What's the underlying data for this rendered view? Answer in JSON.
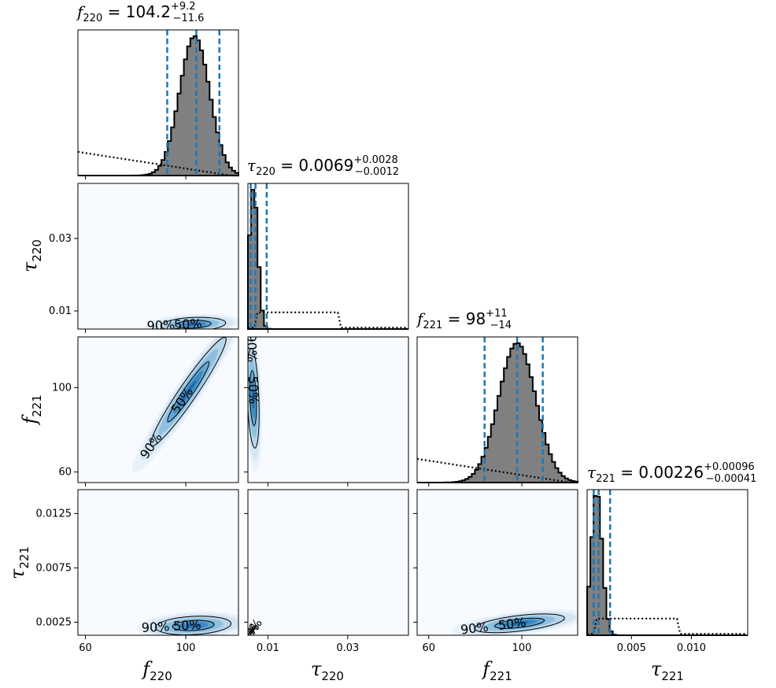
{
  "figure": {
    "type": "corner-plot",
    "parameters": [
      {
        "id": "f220",
        "symbol": "f",
        "subscript": "220",
        "label": "f220"
      },
      {
        "id": "tau220",
        "symbol": "τ",
        "subscript": "220",
        "label": "τ220"
      },
      {
        "id": "f221",
        "symbol": "f",
        "subscript": "221",
        "label": "f221"
      },
      {
        "id": "tau221",
        "symbol": "τ",
        "subscript": "221",
        "label": "τ221"
      }
    ],
    "titles": [
      {
        "param": "f220",
        "equals": " = ",
        "median": "104.2",
        "plus": "+9.2",
        "minus": "−11.6"
      },
      {
        "param": "tau220",
        "equals": " = ",
        "median": "0.0069",
        "plus": "+0.0028",
        "minus": "−0.0012"
      },
      {
        "param": "f221",
        "equals": " = ",
        "median": "98",
        "plus": "+11",
        "minus": "−14"
      },
      {
        "param": "tau221",
        "equals": " = ",
        "median": "0.00226",
        "plus": "+0.00096",
        "minus": "−0.00041"
      }
    ],
    "colors": {
      "histogram_fill": "#808080",
      "histogram_edge": "#000000",
      "quantile_lines": "#1f77b4",
      "density_low": "#f7fbff",
      "density_high": "#08306b",
      "contour": "#000000",
      "prior": "#000000"
    },
    "contour_levels": [
      "50%",
      "90%"
    ]
  },
  "chart_data": {
    "type": "corner",
    "parameters": [
      "f220",
      "tau220",
      "f221",
      "tau221"
    ],
    "ranges": {
      "f220": [
        57,
        121
      ],
      "tau220": [
        0.005,
        0.0452
      ],
      "f221": [
        55,
        124
      ],
      "tau221": [
        0.0013,
        0.0147
      ]
    },
    "ticks": {
      "f220": {
        "values": [
          60,
          100
        ],
        "labels": [
          "60",
          "100"
        ]
      },
      "tau220": {
        "values": [
          0.01,
          0.03
        ],
        "labels": [
          "0.01",
          "0.03"
        ]
      },
      "f221": {
        "values": [
          60,
          100
        ],
        "labels": [
          "60",
          "100"
        ]
      },
      "tau221": {
        "values": [
          0.0025,
          0.0075,
          0.0125
        ],
        "labels": [
          "0.0025",
          "0.0075",
          "0.0125"
        ],
        "x_values": [
          0.005,
          0.01
        ],
        "x_labels": [
          "0.005",
          "0.010"
        ]
      }
    },
    "marginals": [
      {
        "param": "f220",
        "median": 104.2,
        "q16": 92.6,
        "q84": 113.4,
        "mean": 103.5,
        "sd": 6.0,
        "prior": "uniform-decreasing",
        "scale": 1.0
      },
      {
        "param": "tau220",
        "median": 0.0069,
        "q16": 0.0057,
        "q84": 0.0097,
        "mean": 0.0064,
        "sd": 0.0011,
        "prior": "uniform-box",
        "scale": 1.0
      },
      {
        "param": "f221",
        "median": 98,
        "q16": 84,
        "q84": 109,
        "mean": 98,
        "sd": 8.0,
        "prior": "uniform-decreasing",
        "scale": 1.0
      },
      {
        "param": "tau221",
        "median": 0.00226,
        "q16": 0.00185,
        "q84": 0.00322,
        "mean": 0.0021,
        "sd": 0.00045,
        "prior": "uniform-box",
        "scale": 1.0
      }
    ],
    "joint": [
      {
        "x": "f220",
        "y": "tau220",
        "cx": 103,
        "cy": 0.0063,
        "sx": 6,
        "sy": 0.0009,
        "rho": 0.2
      },
      {
        "x": "f220",
        "y": "f221",
        "cx": 101,
        "cy": 98,
        "sx": 7,
        "sy": 12,
        "rho": 0.96
      },
      {
        "x": "tau220",
        "y": "f221",
        "cx": 0.0063,
        "cy": 95,
        "sx": 0.0007,
        "sy": 11,
        "rho": -0.3
      },
      {
        "x": "f220",
        "y": "tau221",
        "cx": 103,
        "cy": 0.0022,
        "sx": 7,
        "sy": 0.0004,
        "rho": 0.2
      },
      {
        "x": "tau220",
        "y": "tau221",
        "cx": 0.006,
        "cy": 0.0017,
        "sx": 0.0004,
        "sy": 0.0002,
        "rho": 0.9
      },
      {
        "x": "f221",
        "y": "tau221",
        "cx": 99,
        "cy": 0.0024,
        "sx": 9,
        "sy": 0.0004,
        "rho": 0.55
      }
    ],
    "contour_labels": [
      "50%",
      "90%"
    ]
  }
}
